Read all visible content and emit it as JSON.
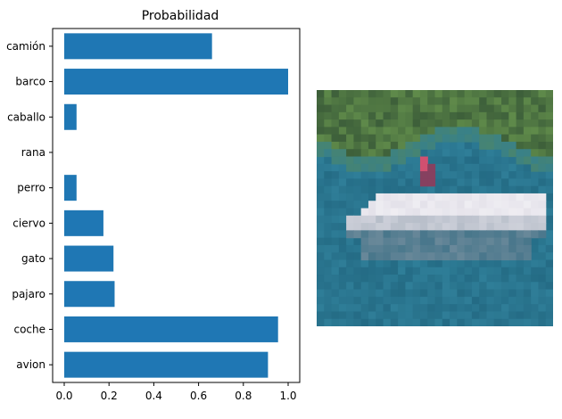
{
  "chart_data": {
    "type": "bar",
    "orientation": "horizontal",
    "title": "Probabilidad",
    "xlabel": "",
    "ylabel": "",
    "categories": [
      "avion",
      "coche",
      "pajaro",
      "gato",
      "ciervo",
      "perro",
      "rana",
      "caballo",
      "barco",
      "camión"
    ],
    "values": [
      0.91,
      0.955,
      0.225,
      0.22,
      0.175,
      0.055,
      0.0,
      0.055,
      1.0,
      0.66
    ],
    "xlim": [
      0,
      1.05
    ],
    "xticks": [
      "0.0",
      "0.2",
      "0.4",
      "0.6",
      "0.8",
      "1.0"
    ],
    "bar_color": "#1f77b4",
    "grid": false,
    "legend": "none"
  },
  "image_panel": {
    "subject": "boat-on-water-pixelated",
    "colors": {
      "water": "#2f7e98",
      "water_dark": "#1d5f78",
      "shore_green": "#5f8a4a",
      "shore_dark": "#3d5f3a",
      "hull": "#e4e2ea",
      "hull_shadow": "#8a9aa8",
      "figure": "#a03a5a"
    }
  }
}
